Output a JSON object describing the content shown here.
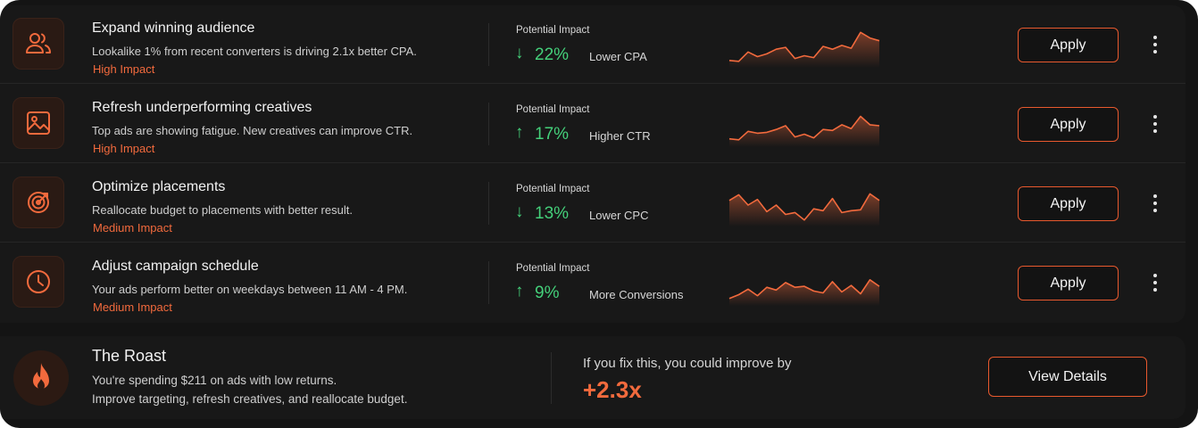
{
  "colors": {
    "accent": "#f26a3d",
    "positive": "#44d07a",
    "background": "#141414"
  },
  "recommendations": [
    {
      "icon": "users-icon",
      "title": "Expand winning audience",
      "description": "Lookalike 1% from recent converters is driving 2.1x better CPA.",
      "badge": "High Impact",
      "impact_label": "Potential Impact",
      "direction": "down",
      "arrow": "↓",
      "percent": "22%",
      "metric": "Lower CPA",
      "trend": [
        5,
        4,
        14,
        9,
        12,
        17,
        19,
        7,
        10,
        8,
        20,
        17,
        21,
        18,
        35,
        29,
        26
      ]
    },
    {
      "icon": "image-icon",
      "title": "Refresh underperforming creatives",
      "description": "Top ads are showing fatigue. New creatives can improve CTR.",
      "badge": "High Impact",
      "impact_label": "Potential Impact",
      "direction": "up",
      "arrow": "↑",
      "percent": "17%",
      "metric": "Higher CTR",
      "trend": [
        6,
        5,
        14,
        12,
        13,
        16,
        20,
        8,
        11,
        7,
        16,
        15,
        21,
        17,
        30,
        21,
        20
      ]
    },
    {
      "icon": "target-icon",
      "title": "Optimize placements",
      "description": "Reallocate budget to placements with better result.",
      "badge": "Medium Impact",
      "impact_label": "Potential Impact",
      "direction": "down",
      "arrow": "↓",
      "percent": "13%",
      "metric": "Lower CPC",
      "trend": [
        25,
        31,
        20,
        26,
        13,
        20,
        10,
        12,
        4,
        16,
        14,
        27,
        12,
        14,
        15,
        32,
        25
      ]
    },
    {
      "icon": "clock-icon",
      "title": "Adjust campaign schedule",
      "description": "Your ads perform better on weekdays between 11 AM - 4 PM.",
      "badge": "Medium Impact",
      "impact_label": "Potential Impact",
      "direction": "up",
      "arrow": "↑",
      "percent": "9%",
      "metric": "More Conversions",
      "trend": [
        5,
        9,
        15,
        8,
        17,
        14,
        22,
        17,
        18,
        13,
        11,
        23,
        12,
        19,
        10,
        25,
        18
      ]
    }
  ],
  "apply_label": "Apply",
  "roast": {
    "icon": "flame-icon",
    "title": "The Roast",
    "line1": "You're spending $211 on ads with low returns.",
    "line2": "Improve targeting, refresh creatives, and reallocate budget.",
    "improve_label": "If you fix this, you could improve by",
    "improve_value": "+2.3x",
    "button": "View Details"
  }
}
